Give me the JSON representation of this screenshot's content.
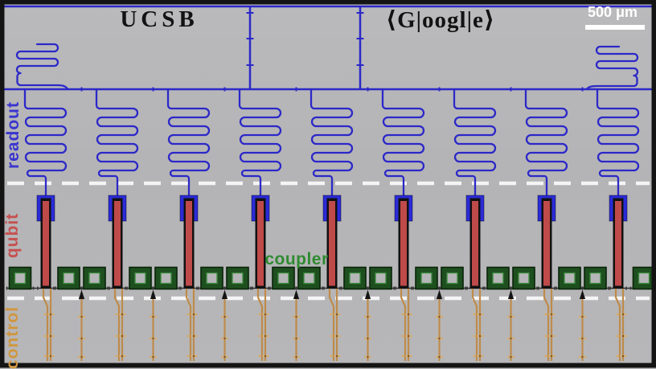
{
  "figure": {
    "title_left": "UCSB",
    "title_right": "⟨G|oogl|e⟩",
    "scale_bar_label": "500 μm"
  },
  "labels": {
    "readout": {
      "text": "readout",
      "color": "#3a35cf"
    },
    "qubit": {
      "text": "qubit",
      "color": "#c65151"
    },
    "coupler": {
      "text": "coupler",
      "color": "#2f8b31"
    },
    "control": {
      "text": "control",
      "color": "#d0973f"
    }
  },
  "device": {
    "qubit_count": 9,
    "readout_resonator_count": 9,
    "coupler_square_count": 18,
    "coupler_control_arrow_count": 8,
    "control_lines_per_qubit": 2
  },
  "colors": {
    "background": "#b6b6b8",
    "readout_blue": "#2c28c8",
    "qubit_cap_blue": "#2b2bd8",
    "qubit_red": "#bf4a4a",
    "qubit_outline": "#111111",
    "coupler_green_fill": "#1e4f1f",
    "coupler_green_edge": "#3b8a3c",
    "coupler_dark_edge": "#0a230a",
    "ground_line": "#2a2a2a",
    "control_orange": "#bf8b4a",
    "control_tick": "#d7ab6b",
    "arrow_black": "#141414",
    "dashed_white": "#f4f4f4",
    "scale_bar_white": "#ffffff",
    "frame_black": "#141414"
  }
}
